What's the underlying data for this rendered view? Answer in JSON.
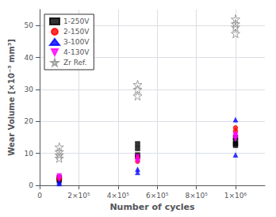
{
  "chart_data": {
    "type": "scatter",
    "xlabel": "Number of cycles",
    "ylabel": "Wear Volume [×10⁻³ mm³]",
    "xlim": [
      0,
      1150000
    ],
    "ylim": [
      0,
      55
    ],
    "xticks": [
      0,
      {
        "value": 200000,
        "label": "2×10⁵"
      },
      {
        "value": 400000,
        "label": "4×10⁵"
      },
      {
        "value": 600000,
        "label": "6×10⁵"
      },
      {
        "value": 800000,
        "label": "8×10⁵"
      },
      {
        "value": 1000000,
        "label": "1×10⁶"
      }
    ],
    "yticks": [
      0,
      10,
      20,
      30,
      40,
      50
    ],
    "grid": true,
    "legend": "upper left",
    "series": [
      {
        "name": "1-250V",
        "color": "black",
        "marker": "square",
        "x": [
          100000,
          100000,
          100000,
          500000,
          500000,
          500000,
          500000,
          1000000,
          1000000,
          1000000,
          1000000
        ],
        "values": [
          2.5,
          2.0,
          1.5,
          13.0,
          11.5,
          9.5,
          9.0,
          15.0,
          14.0,
          13.0,
          12.5
        ]
      },
      {
        "name": "2-150V",
        "color": "#ff0000",
        "marker": "circle",
        "x": [
          100000,
          100000,
          500000,
          500000,
          1000000,
          1000000
        ],
        "values": [
          2.5,
          2.0,
          8.5,
          7.5,
          18.0,
          17.0
        ]
      },
      {
        "name": "3-100V",
        "color": "#0000ff",
        "marker": "triangle-up",
        "x": [
          100000,
          100000,
          500000,
          500000,
          1000000,
          1000000
        ],
        "values": [
          1.0,
          0.5,
          5.0,
          4.0,
          20.5,
          9.5
        ]
      },
      {
        "name": "4-130V",
        "color": "#ff00ff",
        "marker": "triangle-down",
        "x": [
          100000,
          100000,
          100000,
          500000,
          500000,
          500000,
          1000000,
          1000000,
          1000000,
          1000000
        ],
        "values": [
          3.0,
          2.5,
          2.0,
          9.0,
          8.0,
          7.5,
          16.0,
          15.5,
          15.0,
          14.5
        ]
      },
      {
        "name": "Zr Ref.",
        "color": "#888888",
        "marker": "star",
        "x": [
          100000,
          100000,
          100000,
          100000,
          500000,
          500000,
          500000,
          1000000,
          1000000,
          1000000,
          1000000
        ],
        "values": [
          12.0,
          10.5,
          9.5,
          8.5,
          31.5,
          30.0,
          28.0,
          52.0,
          50.5,
          49.5,
          47.5
        ]
      }
    ]
  }
}
